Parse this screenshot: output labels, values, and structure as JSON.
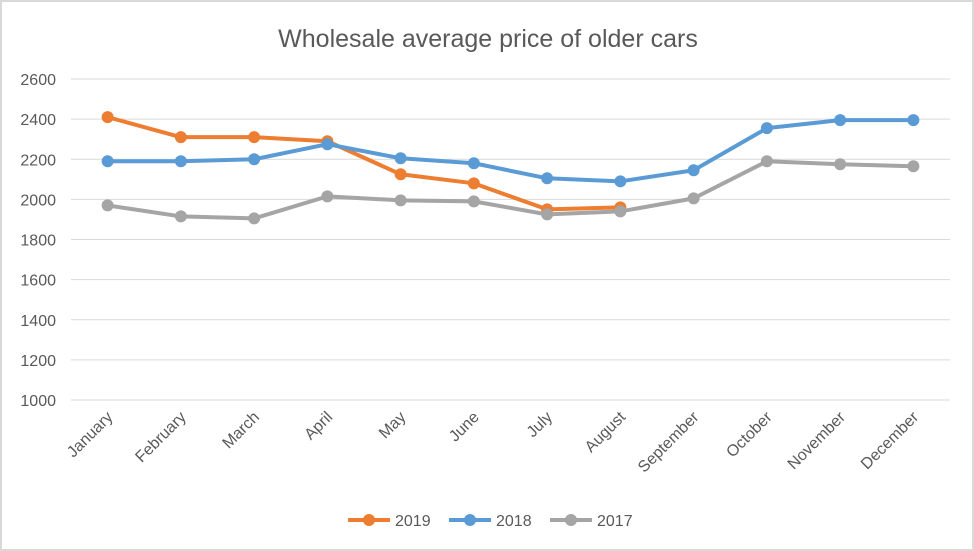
{
  "chart_data": {
    "type": "line",
    "title": "Wholesale average price of older cars",
    "xlabel": "",
    "ylabel": "",
    "categories": [
      "January",
      "February",
      "March",
      "April",
      "May",
      "June",
      "July",
      "August",
      "September",
      "October",
      "November",
      "December"
    ],
    "ylim": [
      1000,
      2600
    ],
    "yticks": [
      1000,
      1200,
      1400,
      1600,
      1800,
      2000,
      2200,
      2400,
      2600
    ],
    "grid": true,
    "legend_position": "bottom",
    "series": [
      {
        "name": "2019",
        "color": "#ed7d31",
        "values": [
          2410,
          2310,
          2310,
          2290,
          2125,
          2080,
          1950,
          1960,
          null,
          null,
          null,
          null
        ]
      },
      {
        "name": "2018",
        "color": "#5b9bd5",
        "values": [
          2190,
          2190,
          2200,
          2275,
          2205,
          2180,
          2105,
          2090,
          2145,
          2355,
          2395,
          2395
        ]
      },
      {
        "name": "2017",
        "color": "#a5a5a5",
        "values": [
          1970,
          1915,
          1905,
          2015,
          1995,
          1990,
          1925,
          1940,
          2005,
          2190,
          2175,
          2165
        ]
      }
    ]
  }
}
